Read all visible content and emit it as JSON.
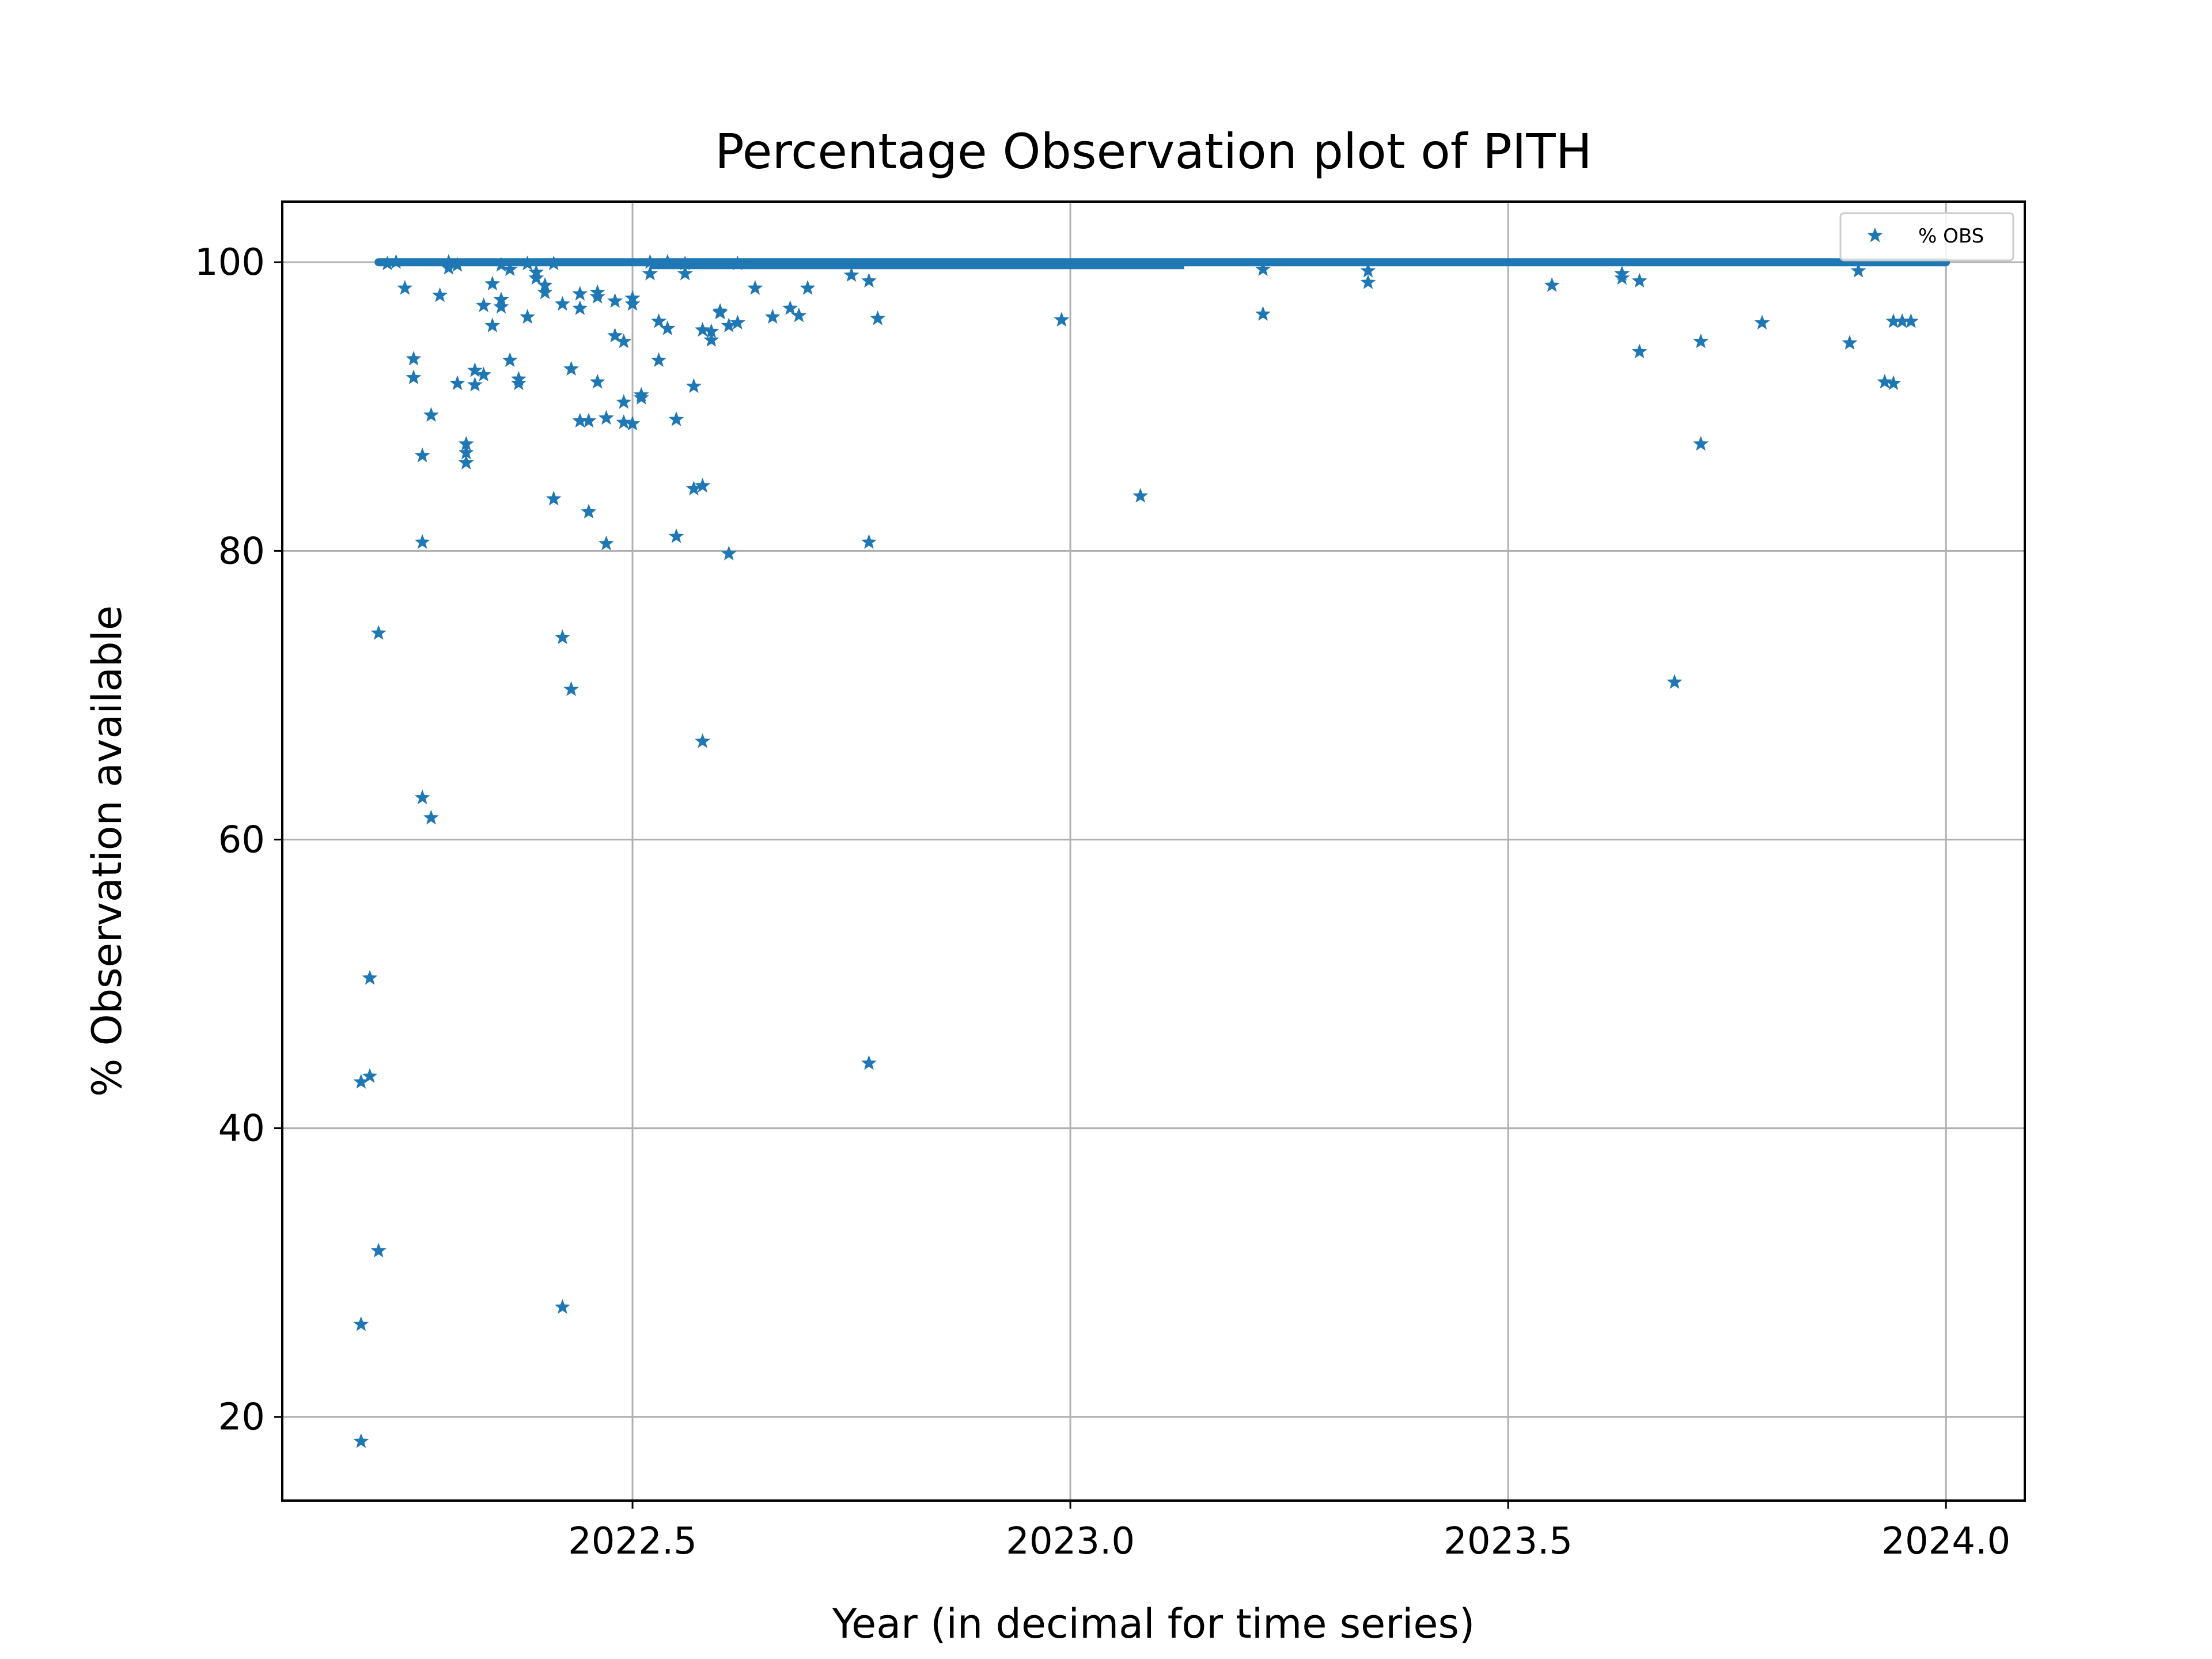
{
  "chart_data": {
    "type": "scatter",
    "title": "Percentage Observation plot of PITH",
    "xlabel": "Year (in decimal for time series)",
    "ylabel": "% Observation available",
    "xlim": [
      2022.1,
      2024.09
    ],
    "ylim": [
      14.2,
      104.2
    ],
    "xticks": [
      2022.5,
      2023.0,
      2023.5,
      2024.0
    ],
    "xtick_labels": [
      "2022.5",
      "2023.0",
      "2023.5",
      "2024.0"
    ],
    "yticks": [
      20,
      40,
      60,
      80,
      100
    ],
    "ytick_labels": [
      "20",
      "40",
      "60",
      "80",
      "100"
    ],
    "grid": true,
    "legend": {
      "position": "top-right"
    },
    "series": [
      {
        "name": "% OBS",
        "marker": "star",
        "color": "#1f77b4",
        "dense_band": {
          "y": 100,
          "x_start": 2022.21,
          "x_end": 2024.0
        },
        "points": [
          [
            2022.19,
            18.3
          ],
          [
            2022.19,
            43.2
          ],
          [
            2022.19,
            26.4
          ],
          [
            2022.2,
            50.4
          ],
          [
            2022.2,
            43.6
          ],
          [
            2022.21,
            31.5
          ],
          [
            2022.21,
            74.3
          ],
          [
            2022.22,
            99.9
          ],
          [
            2022.23,
            100
          ],
          [
            2022.24,
            98.2
          ],
          [
            2022.25,
            93.3
          ],
          [
            2022.25,
            92.0
          ],
          [
            2022.26,
            80.6
          ],
          [
            2022.26,
            62.9
          ],
          [
            2022.26,
            86.6
          ],
          [
            2022.27,
            89.4
          ],
          [
            2022.27,
            61.5
          ],
          [
            2022.28,
            97.7
          ],
          [
            2022.29,
            99.6
          ],
          [
            2022.29,
            100
          ],
          [
            2022.3,
            91.6
          ],
          [
            2022.3,
            99.8
          ],
          [
            2022.31,
            87.4
          ],
          [
            2022.31,
            86.1
          ],
          [
            2022.31,
            86.8
          ],
          [
            2022.32,
            91.5
          ],
          [
            2022.32,
            92.5
          ],
          [
            2022.33,
            97.0
          ],
          [
            2022.33,
            92.2
          ],
          [
            2022.34,
            95.6
          ],
          [
            2022.34,
            98.5
          ],
          [
            2022.35,
            99.8
          ],
          [
            2022.35,
            97.4
          ],
          [
            2022.35,
            96.9
          ],
          [
            2022.36,
            99.5
          ],
          [
            2022.36,
            93.2
          ],
          [
            2022.37,
            91.6
          ],
          [
            2022.37,
            91.9
          ],
          [
            2022.38,
            96.2
          ],
          [
            2022.38,
            99.9
          ],
          [
            2022.39,
            98.9
          ],
          [
            2022.39,
            99.3
          ],
          [
            2022.4,
            97.9
          ],
          [
            2022.4,
            98.4
          ],
          [
            2022.41,
            99.9
          ],
          [
            2022.41,
            83.6
          ],
          [
            2022.42,
            97.1
          ],
          [
            2022.42,
            74.0
          ],
          [
            2022.42,
            27.6
          ],
          [
            2022.43,
            70.4
          ],
          [
            2022.43,
            92.6
          ],
          [
            2022.44,
            96.8
          ],
          [
            2022.44,
            89.0
          ],
          [
            2022.44,
            97.8
          ],
          [
            2022.45,
            89.0
          ],
          [
            2022.45,
            82.7
          ],
          [
            2022.46,
            91.7
          ],
          [
            2022.46,
            97.9
          ],
          [
            2022.46,
            97.6
          ],
          [
            2022.47,
            89.2
          ],
          [
            2022.47,
            80.5
          ],
          [
            2022.48,
            94.9
          ],
          [
            2022.48,
            97.3
          ],
          [
            2022.49,
            88.9
          ],
          [
            2022.49,
            90.3
          ],
          [
            2022.49,
            94.5
          ],
          [
            2022.5,
            88.8
          ],
          [
            2022.5,
            97.5
          ],
          [
            2022.5,
            97.1
          ],
          [
            2022.51,
            90.6
          ],
          [
            2022.51,
            90.8
          ],
          [
            2022.52,
            100
          ],
          [
            2022.52,
            99.2
          ],
          [
            2022.53,
            95.9
          ],
          [
            2022.53,
            93.2
          ],
          [
            2022.54,
            100
          ],
          [
            2022.54,
            95.4
          ],
          [
            2022.55,
            89.1
          ],
          [
            2022.55,
            81.0
          ],
          [
            2022.56,
            99.9
          ],
          [
            2022.56,
            99.2
          ],
          [
            2022.57,
            91.4
          ],
          [
            2022.57,
            84.3
          ],
          [
            2022.58,
            84.5
          ],
          [
            2022.58,
            66.8
          ],
          [
            2022.58,
            95.3
          ],
          [
            2022.59,
            94.6
          ],
          [
            2022.59,
            95.2
          ],
          [
            2022.6,
            96.6
          ],
          [
            2022.6,
            96.5
          ],
          [
            2022.61,
            95.6
          ],
          [
            2022.61,
            79.8
          ],
          [
            2022.62,
            95.8
          ],
          [
            2022.62,
            99.9
          ],
          [
            2022.64,
            98.2
          ],
          [
            2022.66,
            96.2
          ],
          [
            2022.68,
            96.8
          ],
          [
            2022.69,
            96.3
          ],
          [
            2022.7,
            98.2
          ],
          [
            2022.77,
            80.6
          ],
          [
            2022.77,
            44.5
          ],
          [
            2022.77,
            98.7
          ],
          [
            2022.78,
            96.1
          ],
          [
            2022.75,
            99.1
          ],
          [
            2022.99,
            96.0
          ],
          [
            2023.08,
            83.8
          ],
          [
            2023.22,
            96.4
          ],
          [
            2023.22,
            99.5
          ],
          [
            2023.34,
            98.6
          ],
          [
            2023.34,
            99.4
          ],
          [
            2023.55,
            98.4
          ],
          [
            2023.63,
            98.9
          ],
          [
            2023.63,
            99.2
          ],
          [
            2023.65,
            93.8
          ],
          [
            2023.65,
            98.7
          ],
          [
            2023.69,
            70.9
          ],
          [
            2023.72,
            94.5
          ],
          [
            2023.72,
            87.4
          ],
          [
            2023.79,
            95.8
          ],
          [
            2023.89,
            94.4
          ],
          [
            2023.9,
            99.4
          ],
          [
            2023.93,
            91.7
          ],
          [
            2023.94,
            91.6
          ],
          [
            2023.94,
            95.9
          ],
          [
            2023.95,
            95.9
          ],
          [
            2023.96,
            95.9
          ]
        ]
      }
    ]
  }
}
